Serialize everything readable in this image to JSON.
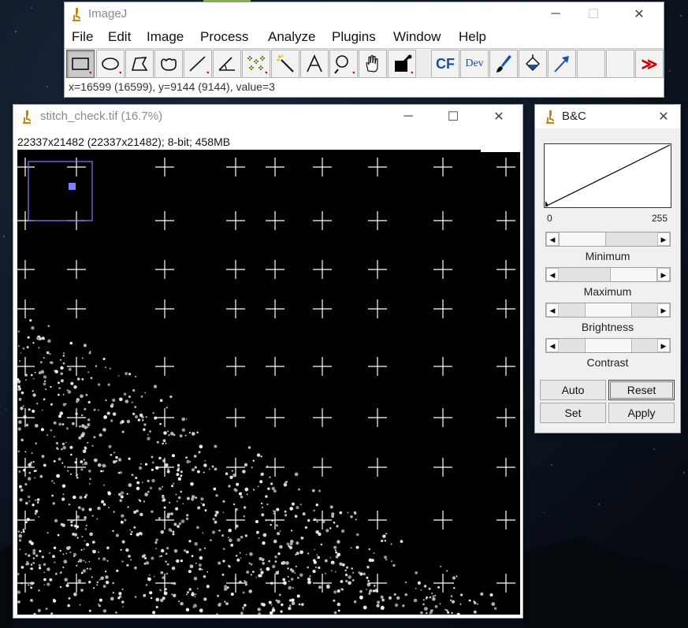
{
  "main_window": {
    "title": "ImageJ",
    "menus": [
      "File",
      "Edit",
      "Image",
      "Process",
      "Analyze",
      "Plugins",
      "Window",
      "Help"
    ],
    "tools": [
      {
        "name": "rectangle-tool",
        "selected": true
      },
      {
        "name": "oval-tool"
      },
      {
        "name": "polygon-tool"
      },
      {
        "name": "freehand-tool"
      },
      {
        "name": "line-tool"
      },
      {
        "name": "angle-tool"
      },
      {
        "name": "multipoint-tool"
      },
      {
        "name": "wand-tool"
      },
      {
        "name": "text-tool"
      },
      {
        "name": "magnifier-tool"
      },
      {
        "name": "scroll-tool"
      },
      {
        "name": "color-picker-tool"
      },
      {
        "name": "cf-tool",
        "label": "CF"
      },
      {
        "name": "dev-tool",
        "label": "Dev"
      },
      {
        "name": "brush-tool"
      },
      {
        "name": "flood-fill-tool"
      },
      {
        "name": "arrow-tool"
      },
      {
        "name": "empty-slot-1"
      },
      {
        "name": "empty-slot-2"
      },
      {
        "name": "more-tools-menu",
        "label": "≫"
      }
    ],
    "status": "x=16599 (16599), y=9144 (9144), value=3"
  },
  "image_window": {
    "title": "stitch_check.tif (16.7%)",
    "info": "22337x21482   (22337x21482); 8-bit; 458MB",
    "zoom_percent": 16.7
  },
  "bc_window": {
    "title": "B&C",
    "hist_min": "0",
    "hist_max": "255",
    "sliders": [
      {
        "label": "Minimum",
        "value": 0
      },
      {
        "label": "Maximum",
        "value": 255
      },
      {
        "label": "Brightness",
        "value": 128
      },
      {
        "label": "Contrast",
        "value": 128
      }
    ],
    "buttons": {
      "auto": "Auto",
      "reset": "Reset",
      "set": "Set",
      "apply": "Apply"
    }
  },
  "colors": {
    "roi": "#7f7fff",
    "grid": "#ffffff",
    "canvas_bg": "#000000",
    "accent_red": "#cc0000",
    "accent_blue": "#1a4fa8"
  }
}
